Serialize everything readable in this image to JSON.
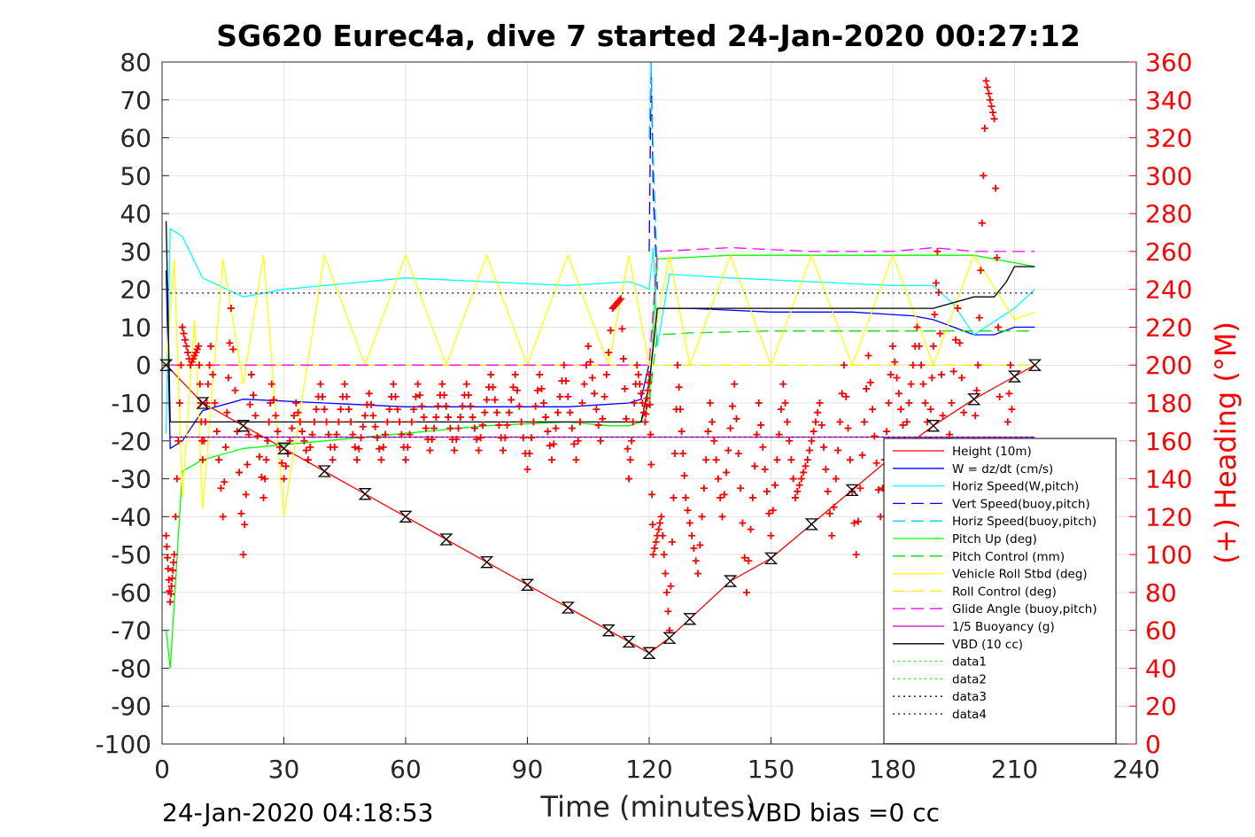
{
  "chart_data": {
    "type": "line",
    "title": "SG620 Eurec4a, dive 7 started 24-Jan-2020 00:27:12",
    "xlabel": "Time (minutes)",
    "ylabel_right": "(+) Heading (°M)",
    "xlim": [
      0,
      240
    ],
    "ylim": [
      -100,
      80
    ],
    "ylim_right": [
      0,
      360
    ],
    "x_ticks": [
      "0",
      "30",
      "60",
      "90",
      "120",
      "150",
      "180",
      "210",
      "240"
    ],
    "y_ticks": [
      "80",
      "70",
      "60",
      "50",
      "40",
      "30",
      "20",
      "10",
      "0",
      "-10",
      "-20",
      "-30",
      "-40",
      "-50",
      "-60",
      "-70",
      "-80",
      "-90",
      "-100"
    ],
    "y_ticks_right": [
      "360",
      "340",
      "320",
      "300",
      "280",
      "260",
      "240",
      "220",
      "200",
      "180",
      "160",
      "140",
      "120",
      "100",
      "80",
      "60",
      "40",
      "20",
      "0"
    ],
    "grid": true,
    "legend_position": "lower-right",
    "footer_left": "24-Jan-2020 04:18:53",
    "footer_right": "VBD bias =0 cc",
    "series": [
      {
        "name": "Height (10m)",
        "color": "#ff0000",
        "style": "solid",
        "x": [
          1,
          10,
          20,
          30,
          40,
          50,
          60,
          70,
          80,
          90,
          100,
          110,
          115,
          120,
          125,
          130,
          140,
          150,
          160,
          170,
          180,
          190,
          200,
          210,
          215
        ],
        "y": [
          0,
          -10,
          -16,
          -22,
          -28,
          -34,
          -40,
          -46,
          -52,
          -58,
          -64,
          -70,
          -73,
          -76,
          -72,
          -67,
          -57,
          -51,
          -42,
          -33,
          -24,
          -16,
          -9,
          -3,
          0
        ]
      },
      {
        "name": "W = dz/dt (cm/s)",
        "color": "#0000ff",
        "style": "solid",
        "x": [
          1,
          2,
          5,
          10,
          20,
          40,
          60,
          80,
          100,
          115,
          118,
          121,
          122,
          130,
          150,
          170,
          185,
          190,
          195,
          200,
          205,
          210,
          215
        ],
        "y": [
          25,
          -22,
          -20,
          -12,
          -9,
          -10,
          -11,
          -11,
          -11,
          -10,
          -9,
          5,
          15,
          15,
          14,
          14,
          13,
          12,
          10,
          8,
          8,
          10,
          10
        ]
      },
      {
        "name": "Horiz Speed(W,pitch)",
        "color": "#00ffff",
        "style": "solid",
        "x": [
          1,
          2,
          5,
          10,
          20,
          30,
          40,
          60,
          80,
          100,
          115,
          118,
          120,
          121,
          122,
          125,
          140,
          160,
          180,
          190,
          195,
          200,
          210,
          215
        ],
        "y": [
          -18,
          36,
          34,
          23,
          18,
          20,
          21,
          23,
          22,
          21,
          22,
          21,
          20,
          31,
          5,
          24,
          23,
          22,
          21,
          21,
          16,
          8,
          15,
          20
        ]
      },
      {
        "name": "Vert Speed(buoy,pitch)",
        "color": "#0000ff",
        "style": "dashed",
        "x": [
          120,
          120.5,
          121,
          122
        ],
        "y": [
          30,
          80,
          45,
          20
        ]
      },
      {
        "name": "Horiz Speed(buoy,pitch)",
        "color": "#00ccff",
        "style": "dashed",
        "x": [
          120,
          120.5,
          121,
          122
        ],
        "y": [
          60,
          80,
          55,
          25
        ]
      },
      {
        "name": "Pitch Up (deg)",
        "color": "#00ff00",
        "style": "solid",
        "x": [
          1,
          2,
          5,
          10,
          20,
          40,
          60,
          80,
          100,
          110,
          115,
          118,
          120,
          121,
          122,
          140,
          160,
          180,
          190,
          200,
          210,
          215
        ],
        "y": [
          -70,
          -80,
          -28,
          -25,
          -22,
          -20,
          -18,
          -16,
          -15,
          -16,
          -16,
          -15,
          -10,
          10,
          28,
          29,
          29,
          29,
          29,
          29,
          27,
          26
        ]
      },
      {
        "name": "Pitch Control (mm)",
        "color": "#00dd00",
        "style": "dashed",
        "x": [
          120,
          121,
          122,
          130,
          150,
          170,
          190,
          200,
          210,
          215
        ],
        "y": [
          -10,
          0,
          8,
          8.5,
          9,
          9,
          9,
          9,
          9,
          9
        ]
      },
      {
        "name": "Vehicle Roll Stbd (deg)",
        "color": "#ffff00",
        "style": "solid",
        "x": [
          1,
          3,
          5,
          8,
          10,
          15,
          20,
          25,
          30,
          40,
          50,
          60,
          70,
          80,
          90,
          100,
          110,
          115,
          120,
          125,
          130,
          140,
          150,
          160,
          170,
          180,
          190,
          200,
          210,
          215
        ],
        "y": [
          0,
          28,
          -35,
          12,
          -38,
          28,
          -5,
          29,
          -40,
          29,
          0,
          29,
          0,
          29,
          0,
          29,
          0,
          29,
          0,
          29,
          0,
          29,
          0,
          29,
          0,
          29,
          0,
          29,
          12,
          14
        ]
      },
      {
        "name": "Roll Control (deg)",
        "color": "#ffee00",
        "style": "dashed",
        "x": [
          0,
          215
        ],
        "y": [
          0,
          0
        ]
      },
      {
        "name": "Glide Angle (buoy,pitch)",
        "color": "#ff00ff",
        "style": "dashed",
        "x": [
          2,
          118,
          120,
          121,
          122,
          140,
          160,
          180,
          190,
          200,
          210,
          215
        ],
        "y": [
          0,
          0,
          0,
          15,
          30,
          31,
          30,
          30,
          31,
          30,
          30,
          30
        ]
      },
      {
        "name": "1/5 Buoyancy (g)",
        "color": "#cc00cc",
        "style": "solid",
        "x": [
          2,
          118,
          121,
          215
        ],
        "y": [
          -19,
          -19,
          -19,
          -19
        ]
      },
      {
        "name": "VBD (10 cc)",
        "color": "#000000",
        "style": "solid",
        "x": [
          1,
          2,
          118,
          120,
          122,
          190,
          200,
          205,
          208,
          210,
          215
        ],
        "y": [
          38,
          -15,
          -15,
          -5,
          15,
          15,
          18,
          18,
          22,
          26,
          26
        ]
      },
      {
        "name": "data1",
        "color": "#00ff00",
        "style": "dotted",
        "x": [],
        "y": []
      },
      {
        "name": "data2",
        "color": "#00ff00",
        "style": "dotted",
        "x": [],
        "y": []
      },
      {
        "name": "data3",
        "color": "#000080",
        "style": "dotted",
        "x": [
          2,
          215
        ],
        "y": [
          19,
          19
        ]
      },
      {
        "name": "data4",
        "color": "#000080",
        "style": "dotted",
        "x": [
          2,
          215
        ],
        "y": [
          -19,
          -19
        ]
      }
    ],
    "heading_series": {
      "axis": "right",
      "color": "#ff0000",
      "marker": "+",
      "x": [
        1,
        2,
        3,
        5,
        7,
        9,
        10,
        12,
        15,
        17,
        20,
        22,
        25,
        27,
        30,
        33,
        36,
        39,
        42,
        45,
        48,
        51,
        54,
        57,
        60,
        63,
        66,
        69,
        72,
        75,
        78,
        81,
        84,
        87,
        90,
        93,
        96,
        99,
        102,
        105,
        108,
        111,
        113,
        115,
        117,
        119,
        120,
        121,
        123,
        125,
        127,
        129,
        132,
        135,
        138,
        141,
        144,
        147,
        150,
        153,
        156,
        159,
        162,
        165,
        168,
        171,
        174,
        177,
        180,
        183,
        186,
        189,
        191,
        193,
        196,
        199,
        201,
        203,
        205,
        207,
        209,
        211
      ],
      "y": [
        110,
        75,
        100,
        220,
        200,
        210,
        150,
        210,
        120,
        230,
        100,
        195,
        130,
        190,
        140,
        180,
        150,
        190,
        150,
        190,
        150,
        185,
        150,
        190,
        150,
        190,
        155,
        190,
        155,
        190,
        155,
        195,
        155,
        195,
        145,
        195,
        150,
        200,
        150,
        210,
        160,
        230,
        235,
        140,
        200,
        170,
        195,
        100,
        120,
        60,
        200,
        130,
        90,
        180,
        120,
        190,
        80,
        180,
        110,
        190,
        130,
        150,
        180,
        110,
        200,
        100,
        205,
        120,
        210,
        160,
        220,
        160,
        260,
        130,
        230,
        120,
        200,
        350,
        330,
        110,
        200,
        60
      ]
    }
  }
}
